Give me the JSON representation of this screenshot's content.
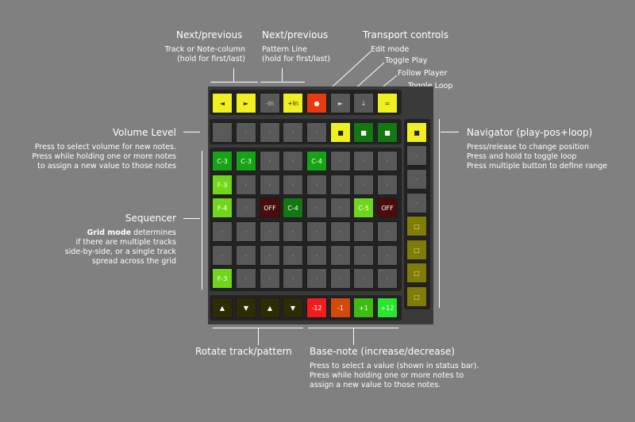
{
  "labels": {
    "next_prev_1": {
      "title": "Next/previous",
      "sub": [
        "Track or Note-column",
        "(hold for first/last)"
      ]
    },
    "next_prev_2": {
      "title": "Next/previous",
      "sub": [
        "Pattern Line",
        "(hold for first/last)"
      ]
    },
    "transport": {
      "title": "Transport controls",
      "items": [
        "Edit mode",
        "Toggle Play",
        "Follow Player",
        "Toggle Loop"
      ]
    },
    "volume": {
      "title": "Volume Level",
      "sub": [
        "Press to select volume for new notes.",
        "Press while holding one or more notes",
        "to assign a new value to those notes"
      ]
    },
    "sequencer": {
      "title": "Sequencer",
      "bold": "Grid mode",
      "first_rest": " determines",
      "sub": [
        "if there are multiple tracks",
        "side-by-side, or a single track",
        "spread across the grid"
      ]
    },
    "navigator": {
      "title": "Navigator (play-pos+loop)",
      "sub": [
        "Press/release to change position",
        "Press and hold to toggle loop",
        "Press multiple button to define range"
      ]
    },
    "rotate": {
      "title": "Rotate track/pattern"
    },
    "basenote": {
      "title": "Base-note (increase/decrease)",
      "sub": [
        "Press to select a value (shown in status bar).",
        "Press while holding one or more notes to",
        "assign a new value to those notes."
      ]
    }
  },
  "transport_row": [
    {
      "label": "◄",
      "color": "yellow"
    },
    {
      "label": "►",
      "color": "yellow"
    },
    {
      "label": "-ln",
      "color": "gray"
    },
    {
      "label": "+ln",
      "color": "yellow"
    },
    {
      "label": "●",
      "color": "red"
    },
    {
      "label": "►",
      "color": "gray"
    },
    {
      "label": "↓",
      "color": "gray"
    },
    {
      "label": "=",
      "color": "yellow"
    }
  ],
  "volume_row": [
    {
      "label": "",
      "color": "gray"
    },
    {
      "label": "·",
      "color": "gray"
    },
    {
      "label": "·",
      "color": "gray"
    },
    {
      "label": "·",
      "color": "gray"
    },
    {
      "label": "·",
      "color": "gray"
    },
    {
      "label": "■",
      "color": "yellow"
    },
    {
      "label": "■",
      "color": "dkgreen"
    },
    {
      "label": "■",
      "color": "dkgreen"
    }
  ],
  "grid": [
    [
      {
        "label": "C-3",
        "color": "green"
      },
      {
        "label": "C-3",
        "color": "green"
      },
      {
        "label": "·",
        "color": "gray"
      },
      {
        "label": "·",
        "color": "gray"
      },
      {
        "label": "C-4",
        "color": "green"
      },
      {
        "label": "·",
        "color": "gray"
      },
      {
        "label": "·",
        "color": "gray"
      },
      {
        "label": "·",
        "color": "gray"
      }
    ],
    [
      {
        "label": "F-3",
        "color": "lime"
      },
      {
        "label": "·",
        "color": "gray"
      },
      {
        "label": "·",
        "color": "gray"
      },
      {
        "label": "·",
        "color": "gray"
      },
      {
        "label": "·",
        "color": "gray"
      },
      {
        "label": "·",
        "color": "gray"
      },
      {
        "label": "·",
        "color": "gray"
      },
      {
        "label": "·",
        "color": "gray"
      }
    ],
    [
      {
        "label": "F-4",
        "color": "lime"
      },
      {
        "label": "·",
        "color": "gray"
      },
      {
        "label": "OFF",
        "color": "dkred"
      },
      {
        "label": "C-4",
        "color": "dkgreen"
      },
      {
        "label": "·",
        "color": "gray"
      },
      {
        "label": "·",
        "color": "gray"
      },
      {
        "label": "C-5",
        "color": "lime"
      },
      {
        "label": "OFF",
        "color": "dkred"
      }
    ],
    [
      {
        "label": "·",
        "color": "gray"
      },
      {
        "label": "·",
        "color": "gray"
      },
      {
        "label": "·",
        "color": "gray"
      },
      {
        "label": "·",
        "color": "gray"
      },
      {
        "label": "·",
        "color": "gray"
      },
      {
        "label": "·",
        "color": "gray"
      },
      {
        "label": "·",
        "color": "gray"
      },
      {
        "label": "·",
        "color": "gray"
      }
    ],
    [
      {
        "label": "·",
        "color": "gray"
      },
      {
        "label": "·",
        "color": "gray"
      },
      {
        "label": "·",
        "color": "gray"
      },
      {
        "label": "·",
        "color": "gray"
      },
      {
        "label": "·",
        "color": "gray"
      },
      {
        "label": "·",
        "color": "gray"
      },
      {
        "label": "·",
        "color": "gray"
      },
      {
        "label": "·",
        "color": "gray"
      }
    ],
    [
      {
        "label": "F-3",
        "color": "lime"
      },
      {
        "label": "·",
        "color": "gray"
      },
      {
        "label": "·",
        "color": "gray"
      },
      {
        "label": "·",
        "color": "gray"
      },
      {
        "label": "·",
        "color": "gray"
      },
      {
        "label": "·",
        "color": "gray"
      },
      {
        "label": "·",
        "color": "gray"
      },
      {
        "label": "·",
        "color": "gray"
      }
    ]
  ],
  "bottom_row": [
    {
      "label": "▲",
      "color": "olive"
    },
    {
      "label": "▼",
      "color": "olive"
    },
    {
      "label": "▲",
      "color": "olive"
    },
    {
      "label": "▼",
      "color": "olive"
    },
    {
      "label": "-12",
      "color": "bred"
    },
    {
      "label": "-1",
      "color": "orange"
    },
    {
      "label": "+1",
      "color": "bgreen"
    },
    {
      "label": "+12",
      "color": "bbgreen"
    }
  ],
  "navigator_col": [
    {
      "label": "■",
      "color": "yellow"
    },
    {
      "label": "·",
      "color": "navgray"
    },
    {
      "label": "·",
      "color": "navgray"
    },
    {
      "label": "·",
      "color": "navgray"
    },
    {
      "label": "□",
      "color": "navolive"
    },
    {
      "label": "□",
      "color": "navolive"
    },
    {
      "label": "□",
      "color": "navolive"
    },
    {
      "label": "□",
      "color": "navolive"
    }
  ]
}
